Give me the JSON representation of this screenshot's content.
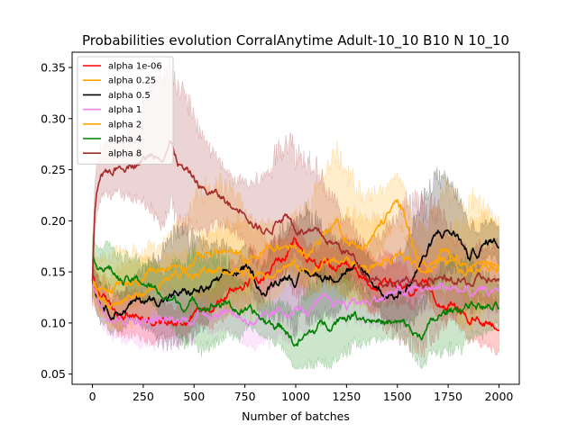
{
  "chart_data": {
    "type": "line",
    "title": "Probabilities evolution CorralAnytime Adult-10_10 B10 N 10_10",
    "xlabel": "Number of batches",
    "ylabel": "",
    "xlim": [
      -100,
      2100
    ],
    "ylim": [
      0.04,
      0.365
    ],
    "xticks": [
      0,
      250,
      500,
      750,
      1000,
      1250,
      1500,
      1750,
      2000
    ],
    "yticks": [
      0.05,
      0.1,
      0.15,
      0.2,
      0.25,
      0.3,
      0.35
    ],
    "grid": false,
    "legend_position": "top-left",
    "series": [
      {
        "name": "alpha 1e-06",
        "color": "#ff0000",
        "points": [
          [
            0,
            0.145
          ],
          [
            30,
            0.13
          ],
          [
            80,
            0.117
          ],
          [
            150,
            0.108
          ],
          [
            250,
            0.104
          ],
          [
            350,
            0.102
          ],
          [
            450,
            0.105
          ],
          [
            550,
            0.117
          ],
          [
            650,
            0.126
          ],
          [
            750,
            0.14
          ],
          [
            850,
            0.15
          ],
          [
            950,
            0.165
          ],
          [
            1000,
            0.18
          ],
          [
            1050,
            0.162
          ],
          [
            1150,
            0.155
          ],
          [
            1250,
            0.148
          ],
          [
            1350,
            0.14
          ],
          [
            1450,
            0.135
          ],
          [
            1550,
            0.13
          ],
          [
            1650,
            0.13
          ],
          [
            1750,
            0.12
          ],
          [
            1850,
            0.105
          ],
          [
            1950,
            0.103
          ],
          [
            2000,
            0.101
          ]
        ],
        "band": [
          0.015,
          0.03
        ]
      },
      {
        "name": "alpha 0.25",
        "color": "#ffa500",
        "points": [
          [
            0,
            0.14
          ],
          [
            30,
            0.125
          ],
          [
            80,
            0.13
          ],
          [
            150,
            0.138
          ],
          [
            250,
            0.148
          ],
          [
            350,
            0.152
          ],
          [
            450,
            0.16
          ],
          [
            550,
            0.168
          ],
          [
            650,
            0.17
          ],
          [
            750,
            0.16
          ],
          [
            850,
            0.17
          ],
          [
            950,
            0.175
          ],
          [
            1000,
            0.17
          ],
          [
            1050,
            0.168
          ],
          [
            1100,
            0.18
          ],
          [
            1150,
            0.19
          ],
          [
            1200,
            0.2
          ],
          [
            1250,
            0.185
          ],
          [
            1300,
            0.175
          ],
          [
            1350,
            0.178
          ],
          [
            1400,
            0.19
          ],
          [
            1450,
            0.205
          ],
          [
            1500,
            0.215
          ],
          [
            1550,
            0.2
          ],
          [
            1600,
            0.165
          ],
          [
            1650,
            0.155
          ],
          [
            1700,
            0.16
          ],
          [
            1750,
            0.165
          ],
          [
            1800,
            0.15
          ],
          [
            1850,
            0.145
          ],
          [
            1900,
            0.16
          ],
          [
            1950,
            0.168
          ],
          [
            2000,
            0.16
          ]
        ],
        "band": [
          0.025,
          0.07
        ]
      },
      {
        "name": "alpha 0.5",
        "color": "#000000",
        "points": [
          [
            0,
            0.14
          ],
          [
            30,
            0.125
          ],
          [
            80,
            0.114
          ],
          [
            150,
            0.115
          ],
          [
            250,
            0.122
          ],
          [
            350,
            0.125
          ],
          [
            450,
            0.128
          ],
          [
            550,
            0.132
          ],
          [
            650,
            0.142
          ],
          [
            750,
            0.152
          ],
          [
            850,
            0.13
          ],
          [
            950,
            0.15
          ],
          [
            1000,
            0.145
          ],
          [
            1050,
            0.147
          ],
          [
            1150,
            0.145
          ],
          [
            1250,
            0.155
          ],
          [
            1350,
            0.145
          ],
          [
            1400,
            0.135
          ],
          [
            1450,
            0.13
          ],
          [
            1500,
            0.128
          ],
          [
            1550,
            0.135
          ],
          [
            1600,
            0.155
          ],
          [
            1650,
            0.17
          ],
          [
            1700,
            0.185
          ],
          [
            1750,
            0.19
          ],
          [
            1800,
            0.185
          ],
          [
            1850,
            0.165
          ],
          [
            1900,
            0.17
          ],
          [
            1950,
            0.18
          ],
          [
            2000,
            0.178
          ]
        ],
        "band": [
          0.02,
          0.06
        ]
      },
      {
        "name": "alpha 1",
        "color": "#ee82ee",
        "points": [
          [
            0,
            0.14
          ],
          [
            30,
            0.122
          ],
          [
            80,
            0.112
          ],
          [
            150,
            0.108
          ],
          [
            250,
            0.103
          ],
          [
            350,
            0.1
          ],
          [
            450,
            0.103
          ],
          [
            550,
            0.11
          ],
          [
            650,
            0.114
          ],
          [
            750,
            0.105
          ],
          [
            850,
            0.1
          ],
          [
            950,
            0.11
          ],
          [
            1000,
            0.115
          ],
          [
            1050,
            0.11
          ],
          [
            1150,
            0.118
          ],
          [
            1250,
            0.12
          ],
          [
            1350,
            0.122
          ],
          [
            1450,
            0.128
          ],
          [
            1550,
            0.13
          ],
          [
            1650,
            0.132
          ],
          [
            1750,
            0.135
          ],
          [
            1850,
            0.13
          ],
          [
            1950,
            0.128
          ],
          [
            2000,
            0.13
          ]
        ],
        "band": [
          0.02,
          0.035
        ]
      },
      {
        "name": "alpha 2",
        "color": "#ffa500",
        "points": [
          [
            0,
            0.145
          ],
          [
            30,
            0.13
          ],
          [
            80,
            0.12
          ],
          [
            150,
            0.122
          ],
          [
            250,
            0.13
          ],
          [
            350,
            0.138
          ],
          [
            450,
            0.14
          ],
          [
            550,
            0.15
          ],
          [
            650,
            0.155
          ],
          [
            750,
            0.148
          ],
          [
            850,
            0.152
          ],
          [
            950,
            0.158
          ],
          [
            1000,
            0.155
          ],
          [
            1050,
            0.15
          ],
          [
            1150,
            0.16
          ],
          [
            1250,
            0.16
          ],
          [
            1350,
            0.155
          ],
          [
            1450,
            0.16
          ],
          [
            1550,
            0.162
          ],
          [
            1650,
            0.155
          ],
          [
            1750,
            0.16
          ],
          [
            1850,
            0.158
          ],
          [
            1950,
            0.162
          ],
          [
            2000,
            0.16
          ]
        ],
        "band": [
          0.02,
          0.05
        ]
      },
      {
        "name": "alpha 4",
        "color": "#008000",
        "points": [
          [
            0,
            0.165
          ],
          [
            30,
            0.16
          ],
          [
            80,
            0.155
          ],
          [
            150,
            0.14
          ],
          [
            250,
            0.14
          ],
          [
            350,
            0.125
          ],
          [
            450,
            0.118
          ],
          [
            550,
            0.12
          ],
          [
            650,
            0.12
          ],
          [
            750,
            0.11
          ],
          [
            850,
            0.1
          ],
          [
            950,
            0.095
          ],
          [
            1000,
            0.08
          ],
          [
            1050,
            0.085
          ],
          [
            1150,
            0.1
          ],
          [
            1250,
            0.11
          ],
          [
            1350,
            0.108
          ],
          [
            1450,
            0.1
          ],
          [
            1550,
            0.095
          ],
          [
            1600,
            0.085
          ],
          [
            1650,
            0.095
          ],
          [
            1750,
            0.11
          ],
          [
            1850,
            0.12
          ],
          [
            1950,
            0.115
          ],
          [
            2000,
            0.112
          ]
        ],
        "band": [
          0.02,
          0.05
        ]
      },
      {
        "name": "alpha 8",
        "color": "#a52a2a",
        "points": [
          [
            0,
            0.14
          ],
          [
            10,
            0.2
          ],
          [
            20,
            0.225
          ],
          [
            40,
            0.235
          ],
          [
            80,
            0.245
          ],
          [
            150,
            0.255
          ],
          [
            200,
            0.26
          ],
          [
            250,
            0.262
          ],
          [
            300,
            0.265
          ],
          [
            350,
            0.27
          ],
          [
            380,
            0.28
          ],
          [
            400,
            0.27
          ],
          [
            420,
            0.26
          ],
          [
            450,
            0.25
          ],
          [
            500,
            0.24
          ],
          [
            550,
            0.23
          ],
          [
            600,
            0.225
          ],
          [
            650,
            0.22
          ],
          [
            700,
            0.21
          ],
          [
            750,
            0.215
          ],
          [
            800,
            0.2
          ],
          [
            850,
            0.19
          ],
          [
            900,
            0.2
          ],
          [
            950,
            0.21
          ],
          [
            1000,
            0.195
          ],
          [
            1050,
            0.19
          ],
          [
            1100,
            0.185
          ],
          [
            1150,
            0.18
          ],
          [
            1200,
            0.175
          ],
          [
            1250,
            0.17
          ],
          [
            1300,
            0.16
          ],
          [
            1350,
            0.15
          ],
          [
            1400,
            0.148
          ],
          [
            1450,
            0.14
          ],
          [
            1500,
            0.142
          ],
          [
            1550,
            0.138
          ],
          [
            1600,
            0.14
          ],
          [
            1650,
            0.142
          ],
          [
            1750,
            0.14
          ],
          [
            1850,
            0.138
          ],
          [
            1950,
            0.142
          ],
          [
            2000,
            0.14
          ]
        ],
        "band": [
          0.03,
          0.08
        ]
      }
    ]
  }
}
